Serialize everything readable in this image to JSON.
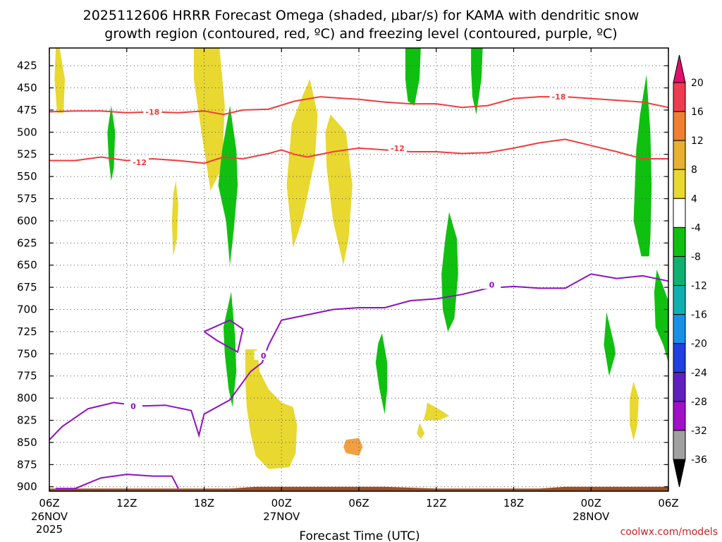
{
  "chart_data": {
    "type": "heatmap",
    "title_line1": "2025112606 HRRR Forecast Omega (shaded, μbar/s) for KAMA with dendritic snow",
    "title_line2": "growth region (contoured, red, ºC) and freezing level (contoured, purple, ºC)",
    "xlabel": "Forecast Time (UTC)",
    "credit": "coolwx.com/models",
    "xlim": [
      0,
      48
    ],
    "ylim": [
      905,
      405
    ],
    "x_ticks": [
      {
        "x": 0,
        "label": "06Z",
        "sub1": "26NOV",
        "sub2": "2025"
      },
      {
        "x": 6,
        "label": "12Z",
        "sub1": "",
        "sub2": ""
      },
      {
        "x": 12,
        "label": "18Z",
        "sub1": "",
        "sub2": ""
      },
      {
        "x": 18,
        "label": "00Z",
        "sub1": "27NOV",
        "sub2": ""
      },
      {
        "x": 24,
        "label": "06Z",
        "sub1": "",
        "sub2": ""
      },
      {
        "x": 30,
        "label": "12Z",
        "sub1": "",
        "sub2": ""
      },
      {
        "x": 36,
        "label": "18Z",
        "sub1": "",
        "sub2": ""
      },
      {
        "x": 42,
        "label": "00Z",
        "sub1": "28NOV",
        "sub2": ""
      },
      {
        "x": 48,
        "label": "06Z",
        "sub1": "",
        "sub2": ""
      }
    ],
    "y_ticks": [
      425,
      450,
      475,
      500,
      525,
      550,
      575,
      600,
      625,
      650,
      675,
      700,
      725,
      750,
      775,
      800,
      825,
      850,
      875,
      900
    ],
    "colorbar": {
      "labels": [
        "20",
        "16",
        "12",
        "8",
        "4",
        "-4",
        "-8",
        "-12",
        "-16",
        "-20",
        "-24",
        "-28",
        "-32",
        "-36"
      ],
      "colors": [
        "#f03c50",
        "#f08030",
        "#e8b030",
        "#e8d830",
        "#ffffff",
        "#10c010",
        "#10b070",
        "#10b0b0",
        "#1890e8",
        "#2040e0",
        "#6020c0",
        "#a010c8",
        "#a0a0a0"
      ],
      "top_arrow": "#e0106a",
      "bottom_arrow": "#000000"
    },
    "contours": [
      {
        "name": "-18C",
        "label": "-18",
        "color": "#f03c3c",
        "label_at": [
          [
            8,
            477
          ],
          [
            39.5,
            460
          ]
        ],
        "points": [
          [
            0,
            477
          ],
          [
            2,
            476
          ],
          [
            4,
            476
          ],
          [
            6,
            478
          ],
          [
            8,
            477
          ],
          [
            10,
            478
          ],
          [
            12,
            476
          ],
          [
            13.5,
            480
          ],
          [
            15,
            475
          ],
          [
            17,
            474
          ],
          [
            19,
            465
          ],
          [
            21,
            460
          ],
          [
            23,
            462
          ],
          [
            24,
            463
          ],
          [
            26,
            466
          ],
          [
            28,
            468
          ],
          [
            30,
            468
          ],
          [
            32,
            472
          ],
          [
            34,
            470
          ],
          [
            36,
            462
          ],
          [
            38,
            460
          ],
          [
            40,
            460
          ],
          [
            42,
            462
          ],
          [
            44,
            464
          ],
          [
            46,
            466
          ],
          [
            48,
            472
          ]
        ]
      },
      {
        "name": "-12C",
        "label": "-12",
        "color": "#f03c3c",
        "label_at": [
          [
            7,
            534
          ],
          [
            27,
            518
          ]
        ],
        "points": [
          [
            0,
            532
          ],
          [
            2,
            532
          ],
          [
            4,
            528
          ],
          [
            6,
            532
          ],
          [
            8,
            530
          ],
          [
            10,
            532
          ],
          [
            12,
            535
          ],
          [
            13.5,
            528
          ],
          [
            15,
            530
          ],
          [
            17,
            524
          ],
          [
            18,
            520
          ],
          [
            19,
            525
          ],
          [
            20,
            528
          ],
          [
            22,
            522
          ],
          [
            24,
            518
          ],
          [
            26,
            520
          ],
          [
            28,
            522
          ],
          [
            30,
            522
          ],
          [
            32,
            524
          ],
          [
            34,
            523
          ],
          [
            36,
            518
          ],
          [
            38,
            512
          ],
          [
            40,
            508
          ],
          [
            42,
            515
          ],
          [
            44,
            522
          ],
          [
            46,
            530
          ],
          [
            48,
            530
          ]
        ]
      },
      {
        "name": "0C-freezing",
        "label": "0",
        "color": "#9010c0",
        "label_at": [
          [
            6.5,
            809
          ],
          [
            16.6,
            752
          ],
          [
            34.3,
            672
          ]
        ],
        "points": [
          [
            0,
            847
          ],
          [
            1,
            832
          ],
          [
            3,
            812
          ],
          [
            5,
            805
          ],
          [
            7,
            809
          ],
          [
            9,
            808
          ],
          [
            11,
            814
          ],
          [
            11.6,
            842
          ],
          [
            12,
            818
          ],
          [
            14,
            802
          ],
          [
            15.6,
            770
          ],
          [
            16.5,
            760
          ],
          [
            17,
            740
          ],
          [
            18,
            712
          ],
          [
            20,
            706
          ],
          [
            22,
            700
          ],
          [
            24,
            698
          ],
          [
            26,
            698
          ],
          [
            28,
            690
          ],
          [
            30,
            688
          ],
          [
            32,
            683
          ],
          [
            34,
            676
          ],
          [
            36,
            674
          ],
          [
            38,
            676
          ],
          [
            40,
            676
          ],
          [
            42,
            660
          ],
          [
            44,
            665
          ],
          [
            46,
            662
          ],
          [
            48,
            668
          ]
        ]
      },
      {
        "name": "0C-lower",
        "label": "",
        "color": "#9010c0",
        "label_at": [],
        "points": [
          [
            0.5,
            902
          ],
          [
            2,
            902
          ],
          [
            3,
            896
          ],
          [
            4,
            890
          ],
          [
            6,
            886
          ],
          [
            8,
            888
          ],
          [
            9.5,
            888
          ],
          [
            10,
            902
          ]
        ]
      },
      {
        "name": "0C-loop",
        "label": "",
        "color": "#9010c0",
        "label_at": [],
        "points": [
          [
            12,
            725
          ],
          [
            14,
            712
          ],
          [
            15,
            722
          ],
          [
            14.6,
            748
          ],
          [
            13,
            735
          ],
          [
            12,
            725
          ]
        ]
      }
    ],
    "shaded_regions": [
      {
        "color": "#e8d830",
        "points": [
          [
            0.8,
            405
          ],
          [
            1.2,
            440
          ],
          [
            1.1,
            478
          ],
          [
            0.6,
            478
          ],
          [
            0.4,
            440
          ],
          [
            0.5,
            405
          ]
        ]
      },
      {
        "color": "#e8d830",
        "points": [
          [
            11.2,
            405
          ],
          [
            13.2,
            405
          ],
          [
            13.6,
            470
          ],
          [
            13.4,
            540
          ],
          [
            12.5,
            566
          ],
          [
            11.8,
            500
          ],
          [
            11.2,
            440
          ]
        ]
      },
      {
        "color": "#e8d830",
        "points": [
          [
            20.2,
            440
          ],
          [
            20.8,
            480
          ],
          [
            20.6,
            530
          ],
          [
            19.6,
            600
          ],
          [
            18.9,
            630
          ],
          [
            18.4,
            560
          ],
          [
            18.8,
            490
          ],
          [
            19.6,
            460
          ]
        ]
      },
      {
        "color": "#e8d830",
        "points": [
          [
            21.8,
            480
          ],
          [
            23,
            500
          ],
          [
            23.5,
            560
          ],
          [
            23.2,
            620
          ],
          [
            22.8,
            650
          ],
          [
            22,
            600
          ],
          [
            21.5,
            540
          ],
          [
            21.4,
            500
          ]
        ]
      },
      {
        "color": "#e8d830",
        "points": [
          [
            9.8,
            555
          ],
          [
            10,
            580
          ],
          [
            9.9,
            620
          ],
          [
            9.6,
            640
          ],
          [
            9.5,
            600
          ],
          [
            9.6,
            570
          ]
        ]
      },
      {
        "color": "#e8d830",
        "points": [
          [
            15.2,
            745
          ],
          [
            16.1,
            745
          ],
          [
            16.3,
            770
          ],
          [
            17,
            790
          ],
          [
            18,
            805
          ],
          [
            18.9,
            810
          ],
          [
            19.2,
            830
          ],
          [
            19.1,
            862
          ],
          [
            18.6,
            878
          ],
          [
            17,
            880
          ],
          [
            16,
            865
          ],
          [
            15.6,
            840
          ],
          [
            15.3,
            810
          ],
          [
            15.2,
            780
          ]
        ]
      },
      {
        "color": "#e8d830",
        "points": [
          [
            29.3,
            805
          ],
          [
            30.5,
            815
          ],
          [
            31,
            820
          ],
          [
            30.2,
            825
          ],
          [
            29,
            825
          ],
          [
            29.2,
            815
          ]
        ]
      },
      {
        "color": "#e8d830",
        "points": [
          [
            28.7,
            828
          ],
          [
            29.1,
            840
          ],
          [
            28.8,
            846
          ],
          [
            28.5,
            840
          ]
        ]
      },
      {
        "color": "#e8d830",
        "points": [
          [
            45.3,
            781
          ],
          [
            45.7,
            800
          ],
          [
            45.6,
            830
          ],
          [
            45.3,
            848
          ],
          [
            45.0,
            830
          ],
          [
            45.0,
            800
          ]
        ]
      },
      {
        "color": "#f0a040",
        "points": [
          [
            23,
            847
          ],
          [
            24,
            845
          ],
          [
            24.3,
            855
          ],
          [
            24,
            865
          ],
          [
            23,
            862
          ],
          [
            22.8,
            855
          ]
        ]
      },
      {
        "color": "#10c010",
        "points": [
          [
            4.8,
            470
          ],
          [
            5.1,
            500
          ],
          [
            5.0,
            540
          ],
          [
            4.8,
            555
          ],
          [
            4.6,
            530
          ],
          [
            4.5,
            500
          ]
        ]
      },
      {
        "color": "#10c010",
        "points": [
          [
            14,
            470
          ],
          [
            14.5,
            520
          ],
          [
            14.6,
            560
          ],
          [
            14.3,
            610
          ],
          [
            14,
            650
          ],
          [
            13.7,
            600
          ],
          [
            13.1,
            560
          ],
          [
            13.4,
            520
          ]
        ]
      },
      {
        "color": "#10c010",
        "points": [
          [
            14.1,
            680
          ],
          [
            14.4,
            730
          ],
          [
            14.5,
            770
          ],
          [
            14.2,
            810
          ],
          [
            13.9,
            790
          ],
          [
            13.6,
            750
          ],
          [
            13.5,
            720
          ]
        ]
      },
      {
        "color": "#10c010",
        "points": [
          [
            27.6,
            405
          ],
          [
            28.8,
            405
          ],
          [
            28.7,
            440
          ],
          [
            28.3,
            470
          ],
          [
            27.8,
            465
          ],
          [
            27.6,
            440
          ]
        ]
      },
      {
        "color": "#10c010",
        "points": [
          [
            32.7,
            405
          ],
          [
            33.6,
            405
          ],
          [
            33.5,
            440
          ],
          [
            33.1,
            480
          ],
          [
            32.8,
            460
          ],
          [
            32.7,
            430
          ]
        ]
      },
      {
        "color": "#10c010",
        "points": [
          [
            31.0,
            590
          ],
          [
            31.6,
            620
          ],
          [
            31.7,
            660
          ],
          [
            31.4,
            710
          ],
          [
            30.9,
            725
          ],
          [
            30.5,
            700
          ],
          [
            30.4,
            660
          ],
          [
            30.7,
            620
          ]
        ]
      },
      {
        "color": "#10c010",
        "points": [
          [
            25.8,
            727
          ],
          [
            26.2,
            760
          ],
          [
            26.2,
            790
          ],
          [
            26.0,
            818
          ],
          [
            25.6,
            790
          ],
          [
            25.3,
            760
          ],
          [
            25.5,
            738
          ]
        ]
      },
      {
        "color": "#10c010",
        "points": [
          [
            46.3,
            435
          ],
          [
            46.6,
            500
          ],
          [
            46.7,
            560
          ],
          [
            46.6,
            620
          ],
          [
            46.5,
            640
          ],
          [
            45.9,
            640
          ],
          [
            45.3,
            600
          ],
          [
            45.5,
            520
          ],
          [
            45.8,
            480
          ]
        ]
      },
      {
        "color": "#10c010",
        "points": [
          [
            47.1,
            655
          ],
          [
            48,
            690
          ],
          [
            48,
            760
          ],
          [
            47.6,
            740
          ],
          [
            47,
            720
          ],
          [
            46.9,
            680
          ]
        ]
      },
      {
        "color": "#10c010",
        "points": [
          [
            43.2,
            703
          ],
          [
            43.8,
            740
          ],
          [
            43.9,
            750
          ],
          [
            43.4,
            775
          ],
          [
            43.0,
            740
          ]
        ]
      }
    ],
    "ground_color": "#9a5028"
  }
}
